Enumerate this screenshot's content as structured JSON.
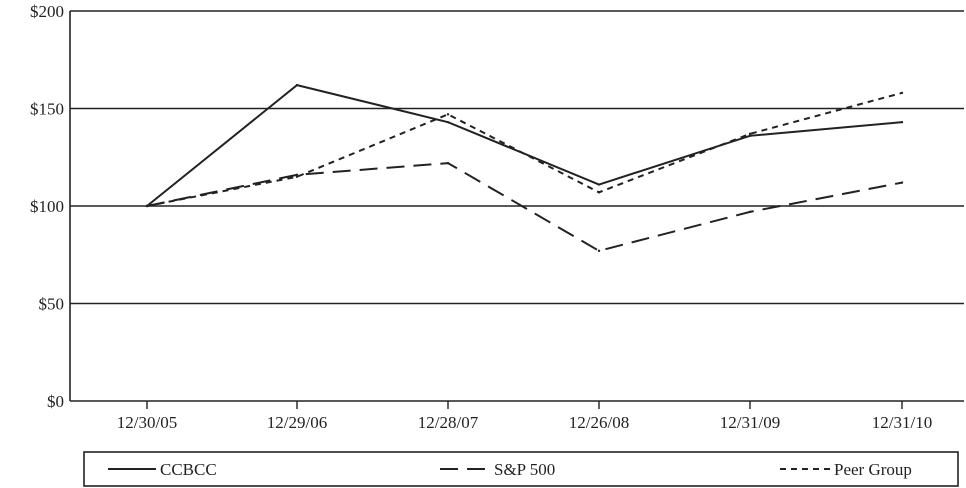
{
  "chart_data": {
    "type": "line",
    "categories": [
      "12/30/05",
      "12/29/06",
      "12/28/07",
      "12/26/08",
      "12/31/09",
      "12/31/10"
    ],
    "series": [
      {
        "name": "CCBCC",
        "values": [
          100,
          162,
          143,
          111,
          136,
          143
        ],
        "dash": "solid"
      },
      {
        "name": "S&P 500",
        "values": [
          100,
          116,
          122,
          77,
          97,
          112
        ],
        "dash": "long-dash"
      },
      {
        "name": "Peer Group",
        "values": [
          100,
          115,
          147,
          107,
          137,
          158
        ],
        "dash": "short-dash"
      }
    ],
    "yticks": [
      "$0",
      "$50",
      "$100",
      "$150",
      "$200"
    ],
    "ylim": [
      0,
      200
    ],
    "grid": "horizontal",
    "legend_position": "bottom",
    "title": "",
    "xlabel": "",
    "ylabel": "",
    "line_color": "#222222"
  }
}
